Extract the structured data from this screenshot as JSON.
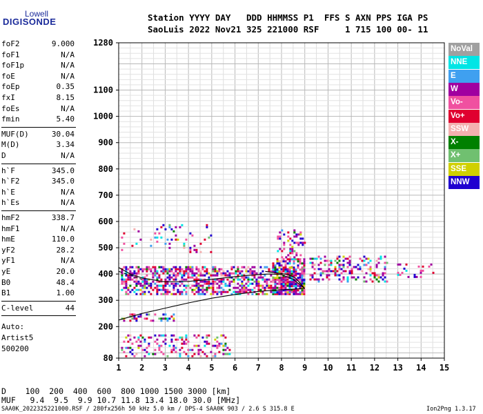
{
  "logo": {
    "top": "Lowell",
    "main": "DIGISONDE"
  },
  "header": {
    "line1": "Station YYYY DAY   DDD HHMMSS P1  FFS S AXN PPS IGA PS",
    "line2": "SaoLuis 2022 Nov21 325 221000 RSF     1 715 100 00- 11"
  },
  "params": [
    {
      "group": [
        {
          "k": "foF2",
          "v": "9.000"
        },
        {
          "k": "foF1",
          "v": "N/A"
        },
        {
          "k": "foF1p",
          "v": "N/A"
        },
        {
          "k": "foE",
          "v": "N/A"
        },
        {
          "k": "foEp",
          "v": "0.35"
        },
        {
          "k": "fxI",
          "v": "8.15"
        },
        {
          "k": "foEs",
          "v": "N/A"
        },
        {
          "k": "fmin",
          "v": "5.40"
        }
      ]
    },
    {
      "group": [
        {
          "k": "MUF(D)",
          "v": "30.04"
        },
        {
          "k": "M(D)",
          "v": "3.34"
        },
        {
          "k": "D",
          "v": "N/A"
        }
      ]
    },
    {
      "group": [
        {
          "k": "h`F",
          "v": "345.0"
        },
        {
          "k": "h`F2",
          "v": "345.0"
        },
        {
          "k": "h`E",
          "v": "N/A"
        },
        {
          "k": "h`Es",
          "v": "N/A"
        }
      ]
    },
    {
      "group": [
        {
          "k": "hmF2",
          "v": "338.7"
        },
        {
          "k": "hmF1",
          "v": "N/A"
        },
        {
          "k": "hmE",
          "v": "110.0"
        },
        {
          "k": "yF2",
          "v": "28.2"
        },
        {
          "k": "yF1",
          "v": "N/A"
        },
        {
          "k": "yE",
          "v": "20.0"
        },
        {
          "k": "B0",
          "v": "48.4"
        },
        {
          "k": "B1",
          "v": "1.00"
        }
      ]
    },
    {
      "group": [
        {
          "k": "C-level",
          "v": "44"
        }
      ]
    }
  ],
  "auto": [
    "Auto:",
    "Artist5",
    "500200"
  ],
  "legend": [
    {
      "label": "NoVal",
      "color": "#a0a0a0"
    },
    {
      "label": "NNE",
      "color": "#00e5e5"
    },
    {
      "label": "E",
      "color": "#3fa0f0"
    },
    {
      "label": "W",
      "color": "#a000a0"
    },
    {
      "label": "Vo-",
      "color": "#f050a0"
    },
    {
      "label": "Vo+",
      "color": "#e00030"
    },
    {
      "label": "SSW",
      "color": "#f4b0b0"
    },
    {
      "label": "X-",
      "color": "#008000"
    },
    {
      "label": "X+",
      "color": "#70c070"
    },
    {
      "label": "SSE",
      "color": "#d0d000"
    },
    {
      "label": "NNW",
      "color": "#2000d0"
    }
  ],
  "bottom": {
    "d_line": "D    100  200  400  600  800 1000 1500 3000 [km]",
    "muf_line": "MUF   9.4  9.5  9.9 10.7 11.8 13.4 18.0 30.0 [MHz]"
  },
  "footer": {
    "left": "SAA0K_2022325221000.RSF / 280fx256h 50 kHz 5.0 km / DPS-4 SAA0K 903 / 2.6 S 315.8 E",
    "right": "Ion2Png 1.3.17"
  },
  "chart_data": {
    "type": "scatter",
    "title": "",
    "xlabel": "",
    "ylabel": "",
    "xlim": [
      1,
      15
    ],
    "ylim": [
      80,
      1280
    ],
    "x_ticks": [
      1,
      2,
      3,
      4,
      5,
      6,
      7,
      8,
      9,
      10,
      11,
      12,
      13,
      14,
      15
    ],
    "y_ticks": [
      80,
      200,
      300,
      400,
      500,
      600,
      700,
      800,
      900,
      1000,
      1100,
      1280
    ],
    "grid": true,
    "series": [
      {
        "name": "trace",
        "points": [
          [
            1.0,
            225
          ],
          [
            2.0,
            250
          ],
          [
            3.0,
            270
          ],
          [
            4.0,
            290
          ],
          [
            5.0,
            308
          ],
          [
            6.0,
            322
          ],
          [
            7.0,
            334
          ],
          [
            8.0,
            340
          ],
          [
            9.0,
            345
          ]
        ]
      },
      {
        "name": "profile",
        "points": [
          [
            1.0,
            425
          ],
          [
            1.5,
            400
          ],
          [
            2.0,
            385
          ],
          [
            3.0,
            370
          ],
          [
            4.0,
            372
          ],
          [
            5.0,
            380
          ],
          [
            6.0,
            390
          ],
          [
            7.0,
            398
          ],
          [
            7.5,
            400
          ],
          [
            8.0,
            398
          ],
          [
            8.5,
            380
          ],
          [
            9.0,
            345
          ]
        ]
      },
      {
        "name": "profile-upper",
        "points": [
          [
            7.3,
            410
          ],
          [
            7.7,
            405
          ],
          [
            8.0,
            402
          ],
          [
            8.3,
            398
          ],
          [
            8.6,
            385
          ],
          [
            9.0,
            345
          ]
        ]
      },
      {
        "name": "profile-dashed",
        "points": [
          [
            1.0,
            410
          ],
          [
            1.5,
            395
          ],
          [
            2.0,
            380
          ]
        ]
      }
    ],
    "echo_regions": [
      {
        "f": [
          1.1,
          9.0
        ],
        "h": [
          320,
          430
        ],
        "density": 0.55
      },
      {
        "f": [
          7.6,
          9.0
        ],
        "h": [
          330,
          460
        ],
        "density": 0.6
      },
      {
        "f": [
          7.8,
          9.0
        ],
        "h": [
          460,
          570
        ],
        "density": 0.25
      },
      {
        "f": [
          9.2,
          12.5
        ],
        "h": [
          370,
          470
        ],
        "density": 0.3
      },
      {
        "f": [
          12.7,
          14.5
        ],
        "h": [
          390,
          440
        ],
        "density": 0.12
      },
      {
        "f": [
          1.1,
          5.0
        ],
        "h": [
          480,
          590
        ],
        "density": 0.1
      },
      {
        "f": [
          1.1,
          3.4
        ],
        "h": [
          220,
          250
        ],
        "density": 0.35
      },
      {
        "f": [
          1.1,
          5.8
        ],
        "h": [
          90,
          170
        ],
        "density": 0.25
      }
    ]
  }
}
